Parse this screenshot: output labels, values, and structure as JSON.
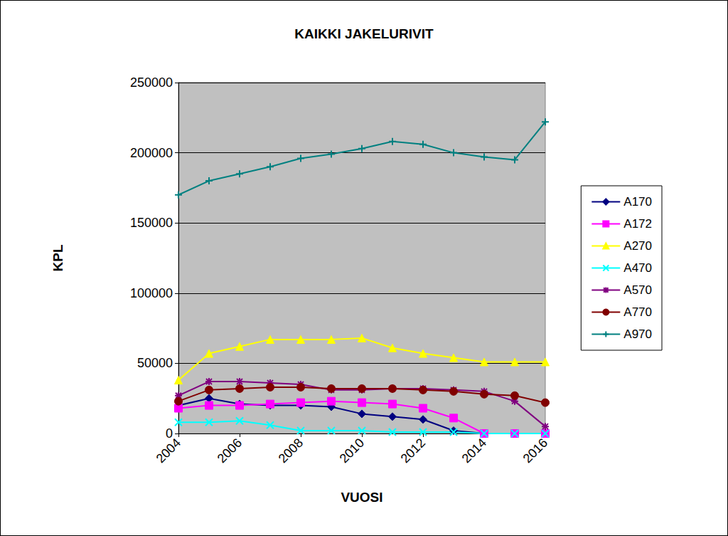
{
  "chart_data": {
    "type": "line",
    "title": "KAIKKI JAKELURIVIT",
    "x_label": "VUOSI",
    "y_label": "KPL",
    "x": [
      2004,
      2005,
      2006,
      2007,
      2008,
      2009,
      2010,
      2011,
      2012,
      2013,
      2014,
      2015,
      2016
    ],
    "xlim": [
      2004,
      2016
    ],
    "xticks": [
      2004,
      2006,
      2008,
      2010,
      2012,
      2014,
      2016
    ],
    "ylim": [
      0,
      250000
    ],
    "yticks": [
      0,
      50000,
      100000,
      150000,
      200000,
      250000
    ],
    "grid": true,
    "legend": "right",
    "series": [
      {
        "name": "A170",
        "color": "#000080",
        "marker": "diamond",
        "values": [
          20000,
          25000,
          21000,
          20000,
          20000,
          19000,
          14000,
          12000,
          10000,
          2000,
          0,
          0,
          0
        ]
      },
      {
        "name": "A172",
        "color": "#ff00ff",
        "marker": "square",
        "values": [
          18000,
          20000,
          20000,
          21000,
          22000,
          23000,
          22000,
          21000,
          18000,
          11000,
          0,
          0,
          0
        ]
      },
      {
        "name": "A270",
        "color": "#ffff00",
        "marker": "triangle",
        "values": [
          38000,
          57000,
          62000,
          67000,
          67000,
          67000,
          68000,
          61000,
          57000,
          54000,
          51000,
          51000,
          51000
        ]
      },
      {
        "name": "A470",
        "color": "#00ffff",
        "marker": "x",
        "values": [
          8000,
          8000,
          9000,
          6000,
          2000,
          2000,
          2000,
          1000,
          1000,
          1000,
          0,
          0,
          0
        ]
      },
      {
        "name": "A570",
        "color": "#800080",
        "marker": "star",
        "values": [
          27000,
          37000,
          37000,
          36000,
          35000,
          31000,
          31000,
          32000,
          32000,
          31000,
          30000,
          23000,
          5000
        ]
      },
      {
        "name": "A770",
        "color": "#800000",
        "marker": "circle",
        "values": [
          23000,
          31000,
          32000,
          33000,
          33000,
          32000,
          32000,
          32000,
          31000,
          30000,
          28000,
          27000,
          22000
        ]
      },
      {
        "name": "A970",
        "color": "#008080",
        "marker": "plus",
        "values": [
          170000,
          180000,
          185000,
          190000,
          196000,
          199000,
          203000,
          208000,
          206000,
          200000,
          197000,
          195000,
          222000
        ]
      }
    ]
  }
}
